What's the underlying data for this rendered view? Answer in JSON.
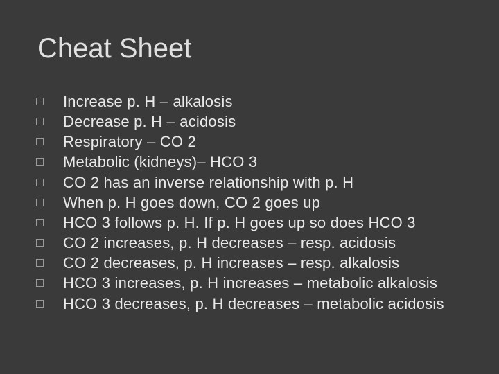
{
  "slide": {
    "title": "Cheat Sheet",
    "background_color": "#3a3a3a",
    "title_color": "#e0e0e0",
    "title_fontsize": 40,
    "text_color": "#e8e8e8",
    "text_fontsize": 22,
    "bullet_border_color": "#999999",
    "bullets": [
      "Increase p. H – alkalosis",
      "Decrease p. H – acidosis",
      "Respiratory – CO 2",
      "Metabolic  (kidneys)– HCO 3",
      "CO 2 has an inverse relationship with p. H",
      "When p. H goes down, CO 2 goes up",
      "HCO 3 follows p. H.   If p. H goes up so does HCO 3",
      "CO 2 increases, p. H decreases – resp. acidosis",
      "CO 2 decreases, p. H increases – resp. alkalosis",
      "HCO 3 increases, p. H increases – metabolic alkalosis",
      "HCO 3 decreases, p. H decreases – metabolic acidosis"
    ]
  }
}
